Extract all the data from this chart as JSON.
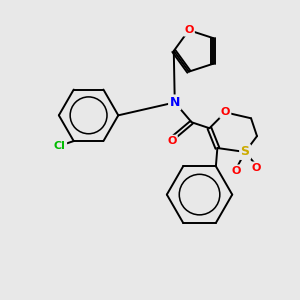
{
  "background_color": "#e8e8e8",
  "atom_colors": {
    "O": "#ff0000",
    "N": "#0000ff",
    "S": "#ccaa00",
    "Cl": "#00bb00",
    "C": "#000000"
  },
  "bond_color": "#000000",
  "figsize": [
    3.0,
    3.0
  ],
  "dpi": 100
}
